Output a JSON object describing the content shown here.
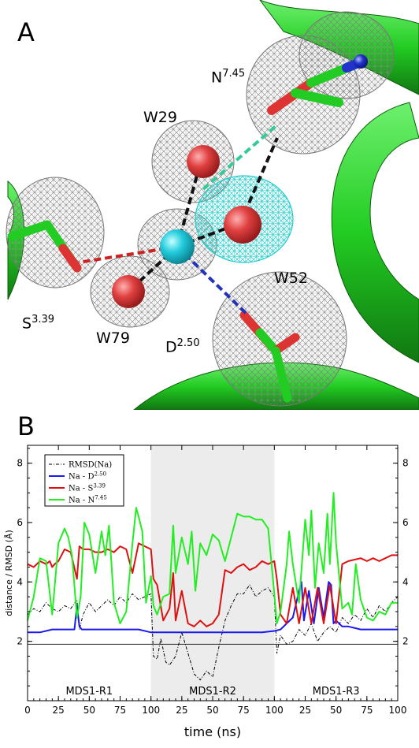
{
  "panel_a": {
    "letter": "A",
    "labels": {
      "n745": {
        "base": "N",
        "sup": "7.45"
      },
      "w29": {
        "base": "W29",
        "sup": ""
      },
      "w52": {
        "base": "W52",
        "sup": ""
      },
      "s339": {
        "base": "S",
        "sup": "3.39"
      },
      "w79": {
        "base": "W79",
        "sup": ""
      },
      "d250": {
        "base": "D",
        "sup": "2.50"
      }
    },
    "colors": {
      "helix": "#22cc22",
      "mesh": "#7a7a7a",
      "mesh_cyan": "#22cccc",
      "water": "#e04040",
      "sodium": "#22ccdd",
      "nitrogen": "#2233cc",
      "oxygen": "#dd3333"
    }
  },
  "panel_b": {
    "letter": "B",
    "segments": [
      {
        "label": "MDS1-R1",
        "shaded": false
      },
      {
        "label": "MDS1-R2",
        "shaded": true
      },
      {
        "label": "MDS1-R3",
        "shaded": false
      }
    ]
  },
  "chart_data": {
    "type": "line",
    "xlabel": "time (ns)",
    "ylabel": "distance / RMSD (Å)",
    "x_tick_labels": [
      "0",
      "25",
      "50",
      "75",
      "100",
      "25",
      "50",
      "75",
      "100",
      "25",
      "50",
      "75",
      "100"
    ],
    "ylim": [
      0,
      8.6
    ],
    "y_ticks": [
      2,
      4,
      6,
      8
    ],
    "y_tick_labels": [
      "2",
      "4",
      "6",
      "8"
    ],
    "reference_line_y": 1.9,
    "legend_position": "top-left",
    "series": [
      {
        "name": "RMSD(Na)",
        "color": "#000000",
        "style": "dashdot",
        "x": [
          0,
          5,
          10,
          15,
          20,
          25,
          30,
          35,
          40,
          42,
          45,
          50,
          55,
          60,
          65,
          70,
          75,
          80,
          85,
          90,
          95,
          100,
          102,
          105,
          108,
          112,
          115,
          120,
          125,
          130,
          135,
          140,
          145,
          150,
          155,
          160,
          165,
          170,
          175,
          180,
          185,
          190,
          195,
          200,
          202,
          205,
          210,
          215,
          220,
          225,
          230,
          235,
          240,
          245,
          250,
          255,
          260,
          265,
          270,
          275,
          280,
          285,
          290,
          295,
          300
        ],
        "y": [
          2.9,
          3.1,
          3.0,
          3.3,
          3.1,
          3.0,
          3.2,
          3.1,
          3.4,
          2.4,
          2.9,
          3.3,
          3.0,
          3.2,
          3.4,
          3.2,
          3.5,
          3.3,
          3.6,
          3.4,
          3.5,
          3.6,
          1.5,
          1.4,
          2.1,
          1.3,
          1.2,
          1.5,
          2.3,
          1.6,
          0.9,
          0.7,
          1.0,
          0.8,
          1.8,
          2.7,
          3.2,
          3.6,
          3.6,
          3.9,
          3.5,
          3.7,
          3.8,
          3.5,
          1.6,
          2.2,
          1.9,
          2.0,
          2.4,
          2.2,
          2.6,
          2.0,
          2.3,
          2.5,
          2.3,
          2.8,
          2.6,
          2.9,
          2.7,
          3.1,
          2.8,
          3.2,
          3.0,
          3.3,
          3.5
        ]
      },
      {
        "name": "Na - D",
        "name_sup": "2.50",
        "color": "#1a1aee",
        "style": "solid",
        "x": [
          0,
          10,
          20,
          30,
          38,
          40,
          42,
          44,
          50,
          60,
          70,
          80,
          90,
          100,
          110,
          120,
          130,
          140,
          150,
          160,
          170,
          180,
          190,
          200,
          205,
          210,
          215,
          220,
          222,
          224,
          228,
          232,
          236,
          240,
          244,
          246,
          248,
          250,
          255,
          260,
          270,
          280,
          290,
          300
        ],
        "y": [
          2.3,
          2.3,
          2.4,
          2.4,
          2.4,
          3.2,
          2.5,
          2.4,
          2.4,
          2.4,
          2.4,
          2.4,
          2.4,
          2.3,
          2.3,
          2.3,
          2.3,
          2.3,
          2.3,
          2.3,
          2.3,
          2.3,
          2.3,
          2.35,
          2.4,
          2.6,
          2.8,
          3.7,
          4.0,
          2.7,
          3.7,
          2.6,
          3.8,
          2.8,
          4.0,
          3.9,
          2.6,
          2.7,
          2.5,
          2.5,
          2.4,
          2.4,
          2.4,
          2.4
        ]
      },
      {
        "name": "Na - S",
        "name_sup": "3.39",
        "color": "#dd1111",
        "style": "solid",
        "x": [
          0,
          5,
          10,
          15,
          18,
          20,
          22,
          25,
          30,
          35,
          40,
          42,
          45,
          50,
          55,
          60,
          65,
          70,
          75,
          80,
          85,
          90,
          95,
          100,
          102,
          105,
          110,
          115,
          118,
          120,
          125,
          130,
          135,
          140,
          145,
          150,
          155,
          160,
          165,
          170,
          175,
          180,
          185,
          190,
          195,
          200,
          202,
          205,
          210,
          215,
          220,
          225,
          230,
          235,
          240,
          245,
          250,
          255,
          260,
          270,
          275,
          280,
          285,
          290,
          295,
          300
        ],
        "y": [
          4.6,
          4.5,
          4.7,
          4.6,
          4.7,
          4.5,
          4.6,
          4.7,
          5.1,
          5.0,
          4.1,
          5.2,
          5.1,
          5.1,
          5.0,
          5.0,
          5.1,
          5.0,
          5.2,
          5.1,
          4.3,
          5.3,
          5.2,
          5.1,
          4.1,
          3.9,
          2.7,
          3.1,
          4.3,
          2.7,
          3.7,
          2.6,
          2.5,
          2.7,
          2.5,
          2.6,
          2.9,
          4.4,
          4.3,
          4.5,
          4.6,
          4.4,
          4.5,
          4.7,
          4.6,
          4.7,
          4.1,
          2.9,
          2.6,
          3.8,
          2.6,
          3.8,
          2.6,
          3.8,
          2.6,
          3.9,
          2.6,
          4.6,
          4.7,
          4.8,
          4.7,
          4.8,
          4.7,
          4.8,
          4.9,
          4.9
        ]
      },
      {
        "name": "Na - N",
        "name_sup": "7.45",
        "color": "#22ee22",
        "style": "solid",
        "x": [
          0,
          5,
          10,
          15,
          20,
          25,
          30,
          33,
          36,
          40,
          43,
          46,
          50,
          55,
          60,
          63,
          66,
          70,
          75,
          80,
          85,
          88,
          90,
          93,
          96,
          100,
          102,
          105,
          110,
          115,
          118,
          120,
          125,
          130,
          133,
          136,
          140,
          145,
          150,
          155,
          160,
          165,
          170,
          175,
          180,
          185,
          190,
          195,
          200,
          202,
          205,
          210,
          212,
          215,
          220,
          225,
          228,
          230,
          233,
          236,
          240,
          243,
          245,
          248,
          250,
          255,
          260,
          263,
          266,
          270,
          275,
          280,
          285,
          290,
          295,
          300
        ],
        "y": [
          2.7,
          3.5,
          4.8,
          4.7,
          2.9,
          5.3,
          5.8,
          5.5,
          4.9,
          2.8,
          3.5,
          6.0,
          5.6,
          4.3,
          5.7,
          4.9,
          5.9,
          3.3,
          2.6,
          3.0,
          5.3,
          6.5,
          6.2,
          5.7,
          3.3,
          4.2,
          3.2,
          2.9,
          3.5,
          3.6,
          5.9,
          4.3,
          5.5,
          4.6,
          5.7,
          3.7,
          5.3,
          4.9,
          5.6,
          5.4,
          4.7,
          5.5,
          6.3,
          6.2,
          6.2,
          6.1,
          6.1,
          5.8,
          3.6,
          2.6,
          3.0,
          4.6,
          5.7,
          4.6,
          3.3,
          6.1,
          4.9,
          6.4,
          3.8,
          5.3,
          4.3,
          6.3,
          4.6,
          7.0,
          5.3,
          3.1,
          3.3,
          2.9,
          4.6,
          3.4,
          2.8,
          2.7,
          3.0,
          2.9,
          3.3,
          3.3
        ]
      }
    ]
  }
}
